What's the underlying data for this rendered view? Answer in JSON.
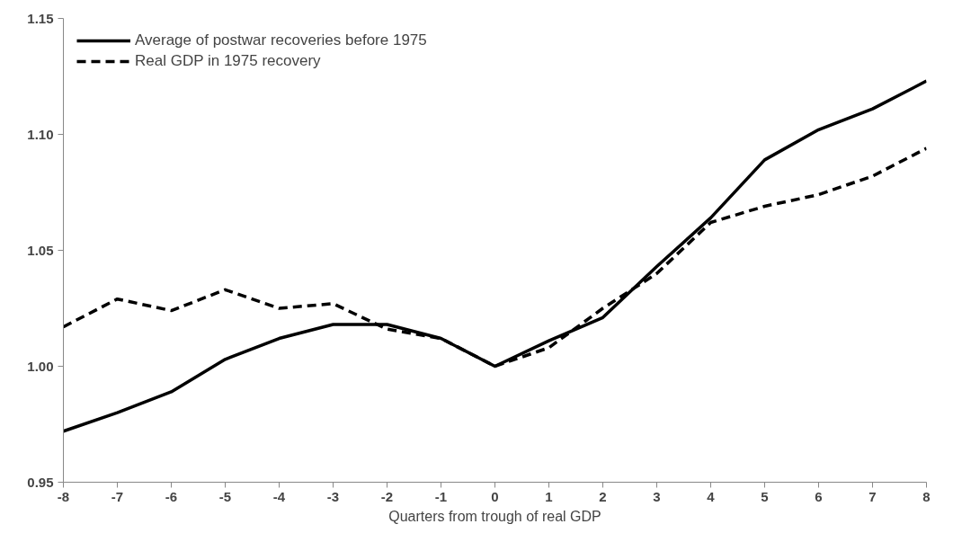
{
  "chart_data": {
    "type": "line",
    "xlabel": "Quarters from trough of real GDP",
    "x": [
      -8,
      -7,
      -6,
      -5,
      -4,
      -3,
      -2,
      -1,
      0,
      1,
      2,
      3,
      4,
      5,
      6,
      7,
      8
    ],
    "series": [
      {
        "name": "Average of postwar recoveries before 1975",
        "color": "#000000",
        "line_style": "solid",
        "values": [
          0.972,
          0.98,
          0.989,
          1.003,
          1.012,
          1.018,
          1.018,
          1.012,
          1.0,
          1.011,
          1.021,
          1.043,
          1.064,
          1.089,
          1.102,
          1.111,
          1.123
        ]
      },
      {
        "name": "Real GDP in 1975 recovery",
        "color": "#000000",
        "line_style": "dashed",
        "values": [
          1.017,
          1.029,
          1.024,
          1.033,
          1.025,
          1.027,
          1.016,
          1.012,
          1.0,
          1.008,
          1.025,
          1.04,
          1.062,
          1.069,
          1.074,
          1.082,
          1.094
        ]
      }
    ],
    "xlim": [
      -8,
      8
    ],
    "xticks": [
      -8,
      -7,
      -6,
      -5,
      -4,
      -3,
      -2,
      -1,
      0,
      1,
      2,
      3,
      4,
      5,
      6,
      7,
      8
    ],
    "ylim": [
      0.95,
      1.15
    ],
    "yticks": [
      {
        "value": 0.95,
        "label": "0.95"
      },
      {
        "value": 1.0,
        "label": "1.00"
      },
      {
        "value": 1.05,
        "label": "1.05"
      },
      {
        "value": 1.1,
        "label": "1.10"
      },
      {
        "value": 1.15,
        "label": "1.15"
      }
    ],
    "grid": false,
    "legend": "top left",
    "marker": "none"
  }
}
